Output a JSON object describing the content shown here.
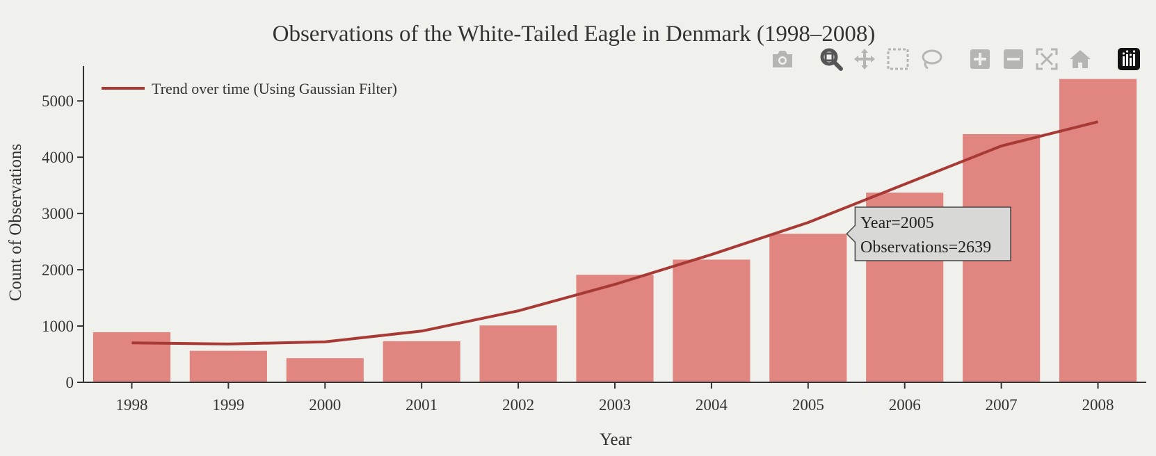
{
  "chart_data": {
    "type": "bar",
    "title": "Observations of the White-Tailed Eagle in Denmark (1998–2008)",
    "xlabel": "Year",
    "ylabel": "Count of Observations",
    "categories": [
      "1998",
      "1999",
      "2000",
      "2001",
      "2002",
      "2003",
      "2004",
      "2005",
      "2006",
      "2007",
      "2008"
    ],
    "series": [
      {
        "type": "bar",
        "values": [
          890,
          560,
          430,
          730,
          1010,
          1910,
          2180,
          2639,
          3370,
          4410,
          5390
        ]
      },
      {
        "type": "line",
        "name": "Trend over time (Using Gaussian Filter)",
        "values": [
          700,
          680,
          720,
          910,
          1270,
          1740,
          2270,
          2840,
          3520,
          4200,
          4630
        ]
      }
    ],
    "ylim": [
      0,
      5620
    ],
    "yticks": [
      0,
      1000,
      2000,
      3000,
      4000,
      5000
    ],
    "legend_position": "top-left",
    "grid": false,
    "colors": {
      "bar": "#e08580",
      "line": "#a83a35",
      "axis": "#333333"
    }
  },
  "tooltip": {
    "category": "2005",
    "line1": "Year=2005",
    "line2": "Observations=2639"
  },
  "modebar": {
    "buttons": [
      "camera-icon",
      "zoom-icon",
      "pan-icon",
      "box-select-icon",
      "lasso-icon",
      "zoom-in-icon",
      "zoom-out-icon",
      "autoscale-icon",
      "home-icon",
      "plotly-logo-icon"
    ],
    "active": "zoom-icon"
  }
}
